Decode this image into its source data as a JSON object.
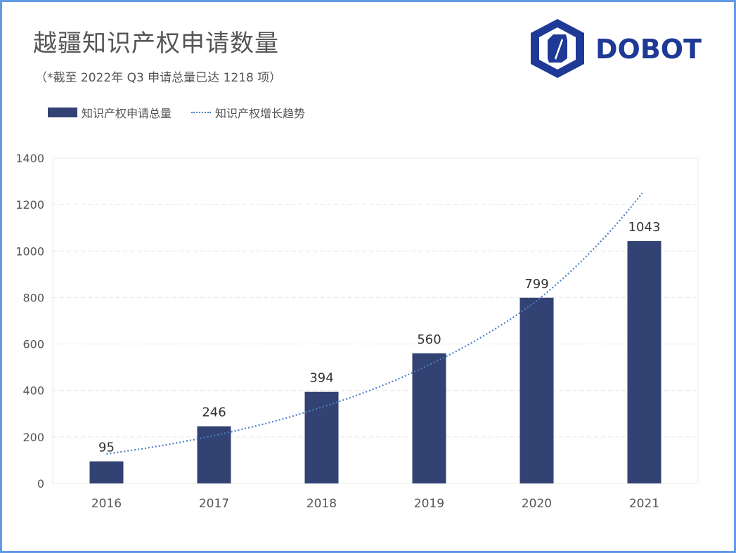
{
  "header": {
    "title": "越疆知识产权申请数量",
    "subtitle": "（*截至 2022年 Q3 申请总量已达 1218 项）",
    "logo_text": "DOBOT"
  },
  "colors": {
    "bar": "#324272",
    "trend": "#4a7fc6",
    "border": "#6499e6",
    "logo": "#1e3a96"
  },
  "chart_data": {
    "type": "bar",
    "categories": [
      "2016",
      "2017",
      "2018",
      "2019",
      "2020",
      "2021"
    ],
    "series": [
      {
        "name": "知识产权申请总量",
        "type": "bar",
        "values": [
          95,
          246,
          394,
          560,
          799,
          1043
        ]
      },
      {
        "name": "知识产权增长趋势",
        "type": "line",
        "style": "dotted",
        "values": [
          127,
          206,
          327,
          508,
          780,
          1249
        ]
      }
    ],
    "data_labels": [
      "95",
      "246",
      "394",
      "560",
      "799",
      "1043"
    ],
    "ylim": [
      0,
      1400
    ],
    "yticks": [
      "0",
      "200",
      "400",
      "600",
      "800",
      "1000",
      "1200",
      "1400"
    ],
    "grid": true,
    "legend": "top-left"
  }
}
